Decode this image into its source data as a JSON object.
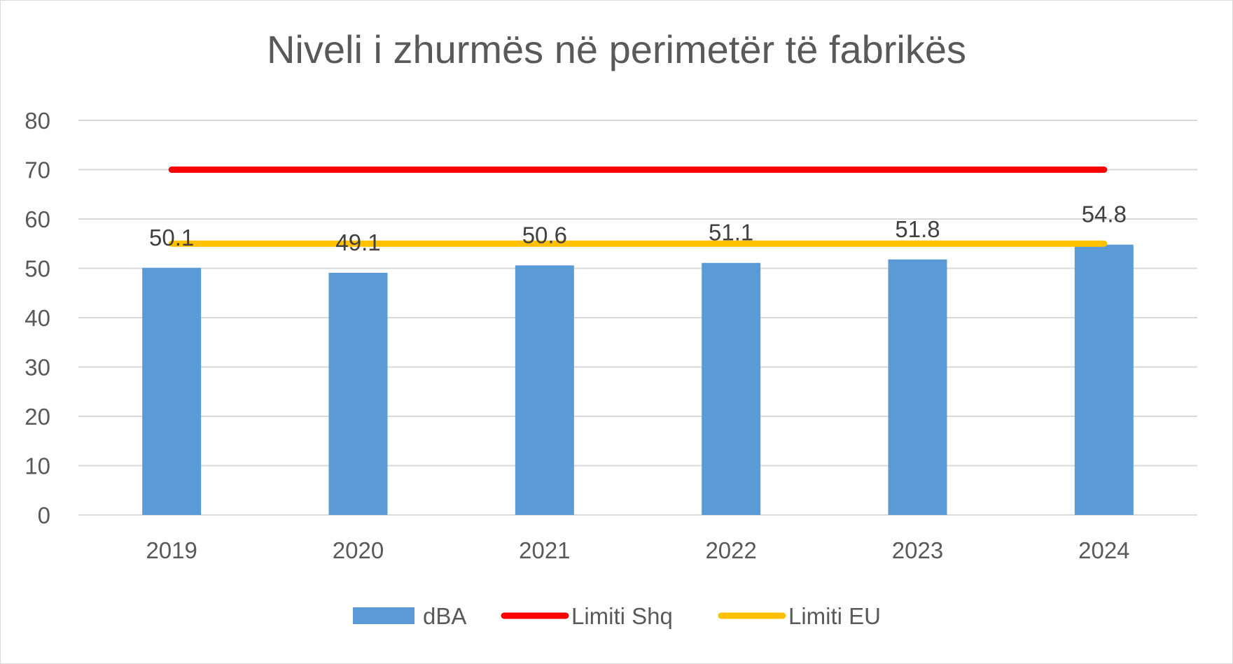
{
  "chart_data": {
    "type": "bar",
    "title": "Niveli i zhurmës në perimetër të fabrikës",
    "categories": [
      "2019",
      "2020",
      "2021",
      "2022",
      "2023",
      "2024"
    ],
    "series": [
      {
        "name": "dBA",
        "type": "bar",
        "color": "#5b9bd5",
        "values": [
          50.1,
          49.1,
          50.6,
          51.1,
          51.8,
          54.8
        ],
        "data_labels": [
          "50.1",
          "49.1",
          "50.6",
          "51.1",
          "51.8",
          "54.8"
        ]
      },
      {
        "name": "Limiti Shq",
        "type": "line",
        "color": "#ff0000",
        "values": [
          70,
          70,
          70,
          70,
          70,
          70
        ]
      },
      {
        "name": "Limiti EU",
        "type": "line",
        "color": "#ffc000",
        "values": [
          55,
          55,
          55,
          55,
          55,
          55
        ]
      }
    ],
    "ylim": [
      0,
      80
    ],
    "yticks": [
      "0",
      "10",
      "20",
      "30",
      "40",
      "50",
      "60",
      "70",
      "80"
    ],
    "grid": true,
    "legend": "bottom"
  }
}
